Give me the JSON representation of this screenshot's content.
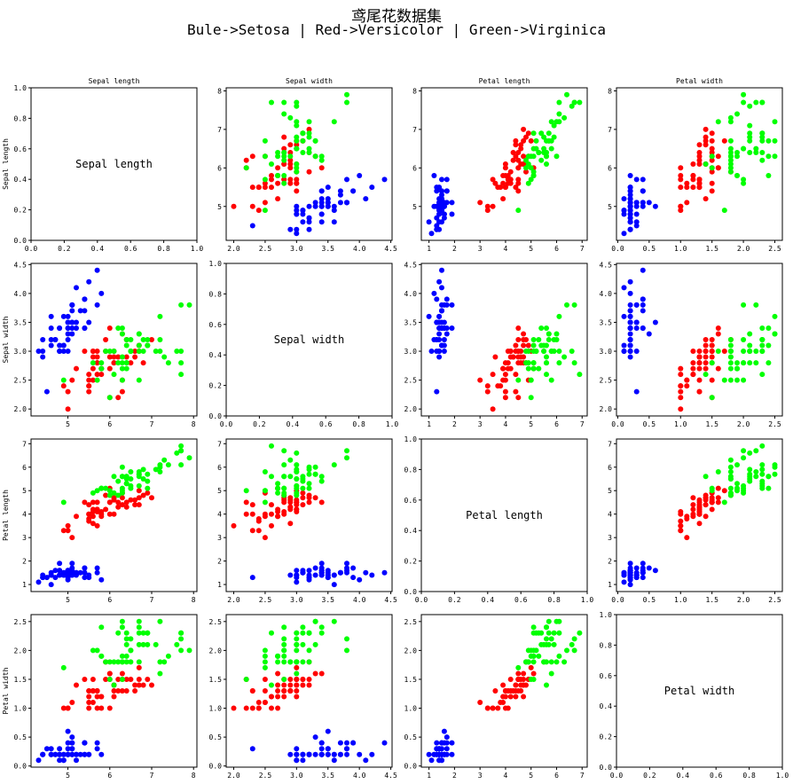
{
  "figure": {
    "title": "鸢尾花数据集",
    "subtitle": "Bule->Setosa | Red->Versicolor | Green->Virginica"
  },
  "chart_data": {
    "type": "scatter",
    "layout": "4x4 pair-plot",
    "features": [
      "Sepal length",
      "Sepal width",
      "Petal length",
      "Petal width"
    ],
    "classes": [
      {
        "name": "Setosa",
        "color": "#0000ff"
      },
      {
        "name": "Versicolor",
        "color": "#ff0000"
      },
      {
        "name": "Virginica",
        "color": "#00ff00"
      }
    ],
    "diagonal_ticks": [
      0.0,
      0.2,
      0.4,
      0.6,
      0.8,
      1.0
    ],
    "axes": {
      "Sepal length": {
        "lim": [
          4.12,
          8.08
        ],
        "ticks": [
          5,
          6,
          7,
          8
        ]
      },
      "Sepal width": {
        "lim": [
          1.88,
          4.52
        ],
        "ticks": [
          2.0,
          2.5,
          3.0,
          3.5,
          4.0,
          4.5
        ]
      },
      "Petal length": {
        "lim": [
          0.7,
          7.2
        ],
        "ticks": [
          1,
          2,
          3,
          4,
          5,
          6,
          7
        ]
      },
      "Petal width": {
        "lim": [
          -0.02,
          2.62
        ],
        "ticks": [
          0.0,
          0.5,
          1.0,
          1.5,
          2.0,
          2.5
        ]
      }
    },
    "samples": [
      [
        5.1,
        3.5,
        1.4,
        0.2,
        0
      ],
      [
        4.9,
        3.0,
        1.4,
        0.2,
        0
      ],
      [
        4.7,
        3.2,
        1.3,
        0.2,
        0
      ],
      [
        4.6,
        3.1,
        1.5,
        0.2,
        0
      ],
      [
        5.0,
        3.6,
        1.4,
        0.2,
        0
      ],
      [
        5.4,
        3.9,
        1.7,
        0.4,
        0
      ],
      [
        4.6,
        3.4,
        1.4,
        0.3,
        0
      ],
      [
        5.0,
        3.4,
        1.5,
        0.2,
        0
      ],
      [
        4.4,
        2.9,
        1.4,
        0.2,
        0
      ],
      [
        4.9,
        3.1,
        1.5,
        0.1,
        0
      ],
      [
        5.4,
        3.7,
        1.5,
        0.2,
        0
      ],
      [
        4.8,
        3.4,
        1.6,
        0.2,
        0
      ],
      [
        4.8,
        3.0,
        1.4,
        0.1,
        0
      ],
      [
        4.3,
        3.0,
        1.1,
        0.1,
        0
      ],
      [
        5.8,
        4.0,
        1.2,
        0.2,
        0
      ],
      [
        5.7,
        4.4,
        1.5,
        0.4,
        0
      ],
      [
        5.4,
        3.9,
        1.3,
        0.4,
        0
      ],
      [
        5.1,
        3.5,
        1.4,
        0.3,
        0
      ],
      [
        5.7,
        3.8,
        1.7,
        0.3,
        0
      ],
      [
        5.1,
        3.8,
        1.5,
        0.3,
        0
      ],
      [
        5.4,
        3.4,
        1.7,
        0.2,
        0
      ],
      [
        5.1,
        3.7,
        1.5,
        0.4,
        0
      ],
      [
        4.6,
        3.6,
        1.0,
        0.2,
        0
      ],
      [
        5.1,
        3.3,
        1.7,
        0.5,
        0
      ],
      [
        4.8,
        3.4,
        1.9,
        0.2,
        0
      ],
      [
        5.0,
        3.0,
        1.6,
        0.2,
        0
      ],
      [
        5.0,
        3.4,
        1.6,
        0.4,
        0
      ],
      [
        5.2,
        3.5,
        1.5,
        0.2,
        0
      ],
      [
        5.2,
        3.4,
        1.4,
        0.2,
        0
      ],
      [
        4.7,
        3.2,
        1.6,
        0.2,
        0
      ],
      [
        4.8,
        3.1,
        1.6,
        0.2,
        0
      ],
      [
        5.4,
        3.4,
        1.5,
        0.4,
        0
      ],
      [
        5.2,
        4.1,
        1.5,
        0.1,
        0
      ],
      [
        5.5,
        4.2,
        1.4,
        0.2,
        0
      ],
      [
        4.9,
        3.1,
        1.5,
        0.2,
        0
      ],
      [
        5.0,
        3.2,
        1.2,
        0.2,
        0
      ],
      [
        5.5,
        3.5,
        1.3,
        0.2,
        0
      ],
      [
        4.9,
        3.6,
        1.4,
        0.1,
        0
      ],
      [
        4.4,
        3.0,
        1.3,
        0.2,
        0
      ],
      [
        5.1,
        3.4,
        1.5,
        0.2,
        0
      ],
      [
        5.0,
        3.5,
        1.3,
        0.3,
        0
      ],
      [
        4.5,
        2.3,
        1.3,
        0.3,
        0
      ],
      [
        4.4,
        3.2,
        1.3,
        0.2,
        0
      ],
      [
        5.0,
        3.5,
        1.6,
        0.6,
        0
      ],
      [
        5.1,
        3.8,
        1.9,
        0.4,
        0
      ],
      [
        4.8,
        3.0,
        1.4,
        0.3,
        0
      ],
      [
        5.1,
        3.8,
        1.6,
        0.2,
        0
      ],
      [
        4.6,
        3.2,
        1.4,
        0.2,
        0
      ],
      [
        5.3,
        3.7,
        1.5,
        0.2,
        0
      ],
      [
        5.0,
        3.3,
        1.4,
        0.2,
        0
      ],
      [
        7.0,
        3.2,
        4.7,
        1.4,
        1
      ],
      [
        6.4,
        3.2,
        4.5,
        1.5,
        1
      ],
      [
        6.9,
        3.1,
        4.9,
        1.5,
        1
      ],
      [
        5.5,
        2.3,
        4.0,
        1.3,
        1
      ],
      [
        6.5,
        2.8,
        4.6,
        1.5,
        1
      ],
      [
        5.7,
        2.8,
        4.5,
        1.3,
        1
      ],
      [
        6.3,
        3.3,
        4.7,
        1.6,
        1
      ],
      [
        4.9,
        2.4,
        3.3,
        1.0,
        1
      ],
      [
        6.6,
        2.9,
        4.6,
        1.3,
        1
      ],
      [
        5.2,
        2.7,
        3.9,
        1.4,
        1
      ],
      [
        5.0,
        2.0,
        3.5,
        1.0,
        1
      ],
      [
        5.9,
        3.0,
        4.2,
        1.5,
        1
      ],
      [
        6.0,
        2.2,
        4.0,
        1.0,
        1
      ],
      [
        6.1,
        2.9,
        4.7,
        1.4,
        1
      ],
      [
        5.6,
        2.9,
        3.6,
        1.3,
        1
      ],
      [
        6.7,
        3.1,
        4.4,
        1.4,
        1
      ],
      [
        5.6,
        3.0,
        4.5,
        1.5,
        1
      ],
      [
        5.8,
        2.7,
        4.1,
        1.0,
        1
      ],
      [
        6.2,
        2.2,
        4.5,
        1.5,
        1
      ],
      [
        5.6,
        2.5,
        3.9,
        1.1,
        1
      ],
      [
        5.9,
        3.2,
        4.8,
        1.8,
        1
      ],
      [
        6.1,
        2.8,
        4.0,
        1.3,
        1
      ],
      [
        6.3,
        2.5,
        4.9,
        1.5,
        1
      ],
      [
        6.1,
        2.8,
        4.7,
        1.2,
        1
      ],
      [
        6.4,
        2.9,
        4.3,
        1.3,
        1
      ],
      [
        6.6,
        3.0,
        4.4,
        1.4,
        1
      ],
      [
        6.8,
        2.8,
        4.8,
        1.4,
        1
      ],
      [
        6.7,
        3.0,
        5.0,
        1.7,
        1
      ],
      [
        6.0,
        2.9,
        4.5,
        1.5,
        1
      ],
      [
        5.7,
        2.6,
        3.5,
        1.0,
        1
      ],
      [
        5.5,
        2.4,
        3.8,
        1.1,
        1
      ],
      [
        5.5,
        2.4,
        3.7,
        1.0,
        1
      ],
      [
        5.8,
        2.7,
        3.9,
        1.2,
        1
      ],
      [
        6.0,
        2.7,
        5.1,
        1.6,
        1
      ],
      [
        5.4,
        3.0,
        4.5,
        1.5,
        1
      ],
      [
        6.0,
        3.4,
        4.5,
        1.6,
        1
      ],
      [
        6.7,
        3.1,
        4.7,
        1.5,
        1
      ],
      [
        6.3,
        2.3,
        4.4,
        1.3,
        1
      ],
      [
        5.6,
        3.0,
        4.1,
        1.3,
        1
      ],
      [
        5.5,
        2.5,
        4.0,
        1.3,
        1
      ],
      [
        5.5,
        2.6,
        4.4,
        1.2,
        1
      ],
      [
        6.1,
        3.0,
        4.6,
        1.4,
        1
      ],
      [
        5.8,
        2.6,
        4.0,
        1.2,
        1
      ],
      [
        5.0,
        2.3,
        3.3,
        1.0,
        1
      ],
      [
        5.6,
        2.7,
        4.2,
        1.3,
        1
      ],
      [
        5.7,
        3.0,
        4.2,
        1.2,
        1
      ],
      [
        5.7,
        2.9,
        4.2,
        1.3,
        1
      ],
      [
        6.2,
        2.9,
        4.3,
        1.3,
        1
      ],
      [
        5.1,
        2.5,
        3.0,
        1.1,
        1
      ],
      [
        5.7,
        2.8,
        4.1,
        1.3,
        1
      ],
      [
        6.3,
        3.3,
        6.0,
        2.5,
        2
      ],
      [
        5.8,
        2.7,
        5.1,
        1.9,
        2
      ],
      [
        7.1,
        3.0,
        5.9,
        2.1,
        2
      ],
      [
        6.3,
        2.9,
        5.6,
        1.8,
        2
      ],
      [
        6.5,
        3.0,
        5.8,
        2.2,
        2
      ],
      [
        7.6,
        3.0,
        6.6,
        2.1,
        2
      ],
      [
        4.9,
        2.5,
        4.5,
        1.7,
        2
      ],
      [
        7.3,
        2.9,
        6.3,
        1.8,
        2
      ],
      [
        6.7,
        2.5,
        5.8,
        1.8,
        2
      ],
      [
        7.2,
        3.6,
        6.1,
        2.5,
        2
      ],
      [
        6.5,
        3.2,
        5.1,
        2.0,
        2
      ],
      [
        6.4,
        2.7,
        5.3,
        1.9,
        2
      ],
      [
        6.8,
        3.0,
        5.5,
        2.1,
        2
      ],
      [
        5.7,
        2.5,
        5.0,
        2.0,
        2
      ],
      [
        5.8,
        2.8,
        5.1,
        2.4,
        2
      ],
      [
        6.4,
        3.2,
        5.3,
        2.3,
        2
      ],
      [
        6.5,
        3.0,
        5.5,
        1.8,
        2
      ],
      [
        7.7,
        3.8,
        6.7,
        2.2,
        2
      ],
      [
        7.7,
        2.6,
        6.9,
        2.3,
        2
      ],
      [
        6.0,
        2.2,
        5.0,
        1.5,
        2
      ],
      [
        6.9,
        3.2,
        5.7,
        2.3,
        2
      ],
      [
        5.6,
        2.8,
        4.9,
        2.0,
        2
      ],
      [
        7.7,
        2.8,
        6.7,
        2.0,
        2
      ],
      [
        6.3,
        2.7,
        4.9,
        1.8,
        2
      ],
      [
        6.7,
        3.3,
        5.7,
        2.1,
        2
      ],
      [
        7.2,
        3.2,
        6.0,
        1.8,
        2
      ],
      [
        6.2,
        2.8,
        4.8,
        1.8,
        2
      ],
      [
        6.1,
        3.0,
        4.9,
        1.8,
        2
      ],
      [
        6.4,
        2.8,
        5.6,
        2.1,
        2
      ],
      [
        7.2,
        3.0,
        5.8,
        1.6,
        2
      ],
      [
        7.4,
        2.8,
        6.1,
        1.9,
        2
      ],
      [
        7.9,
        3.8,
        6.4,
        2.0,
        2
      ],
      [
        6.4,
        2.8,
        5.6,
        2.2,
        2
      ],
      [
        6.3,
        2.8,
        5.1,
        1.5,
        2
      ],
      [
        6.1,
        2.6,
        5.6,
        1.4,
        2
      ],
      [
        7.7,
        3.0,
        6.1,
        2.3,
        2
      ],
      [
        6.3,
        3.4,
        5.6,
        2.4,
        2
      ],
      [
        6.4,
        3.1,
        5.5,
        1.8,
        2
      ],
      [
        6.0,
        3.0,
        4.8,
        1.8,
        2
      ],
      [
        6.9,
        3.1,
        5.4,
        2.1,
        2
      ],
      [
        6.7,
        3.1,
        5.6,
        2.4,
        2
      ],
      [
        6.9,
        3.1,
        5.1,
        2.3,
        2
      ],
      [
        5.8,
        2.7,
        5.1,
        1.9,
        2
      ],
      [
        6.8,
        3.2,
        5.9,
        2.3,
        2
      ],
      [
        6.7,
        3.3,
        5.7,
        2.5,
        2
      ],
      [
        6.7,
        3.0,
        5.2,
        2.3,
        2
      ],
      [
        6.3,
        2.5,
        5.0,
        1.9,
        2
      ],
      [
        6.5,
        3.0,
        5.2,
        2.0,
        2
      ],
      [
        6.2,
        3.4,
        5.4,
        2.3,
        2
      ],
      [
        5.9,
        3.0,
        5.1,
        1.8,
        2
      ]
    ]
  }
}
